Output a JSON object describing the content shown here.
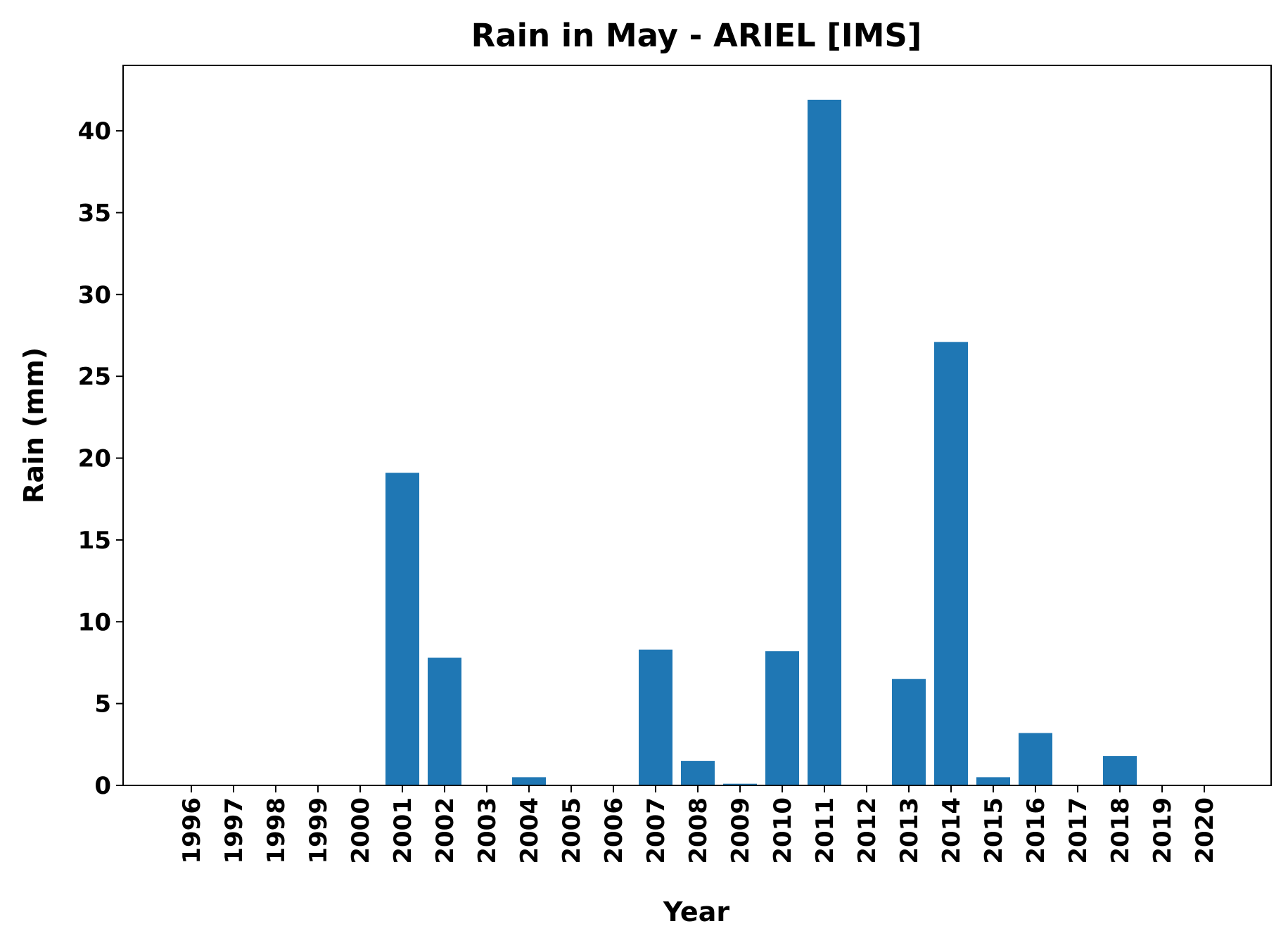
{
  "chart_data": {
    "type": "bar",
    "title": "Rain in May - ARIEL [IMS]",
    "xlabel": "Year",
    "ylabel": "Rain (mm)",
    "categories": [
      "1996",
      "1997",
      "1998",
      "1999",
      "2000",
      "2001",
      "2002",
      "2003",
      "2004",
      "2005",
      "2006",
      "2007",
      "2008",
      "2009",
      "2010",
      "2011",
      "2012",
      "2013",
      "2014",
      "2015",
      "2016",
      "2017",
      "2018",
      "2019",
      "2020"
    ],
    "values": [
      0,
      0,
      0,
      0,
      0,
      19.1,
      7.8,
      0,
      0.5,
      0,
      0,
      8.3,
      1.5,
      0.1,
      8.2,
      41.9,
      0,
      6.5,
      27.1,
      0.5,
      3.2,
      0,
      1.8,
      0,
      0
    ],
    "ylim": [
      0,
      44
    ],
    "yticks": [
      0,
      5,
      10,
      15,
      20,
      25,
      30,
      35,
      40
    ],
    "grid": false,
    "bar_color": "#1f77b4"
  }
}
